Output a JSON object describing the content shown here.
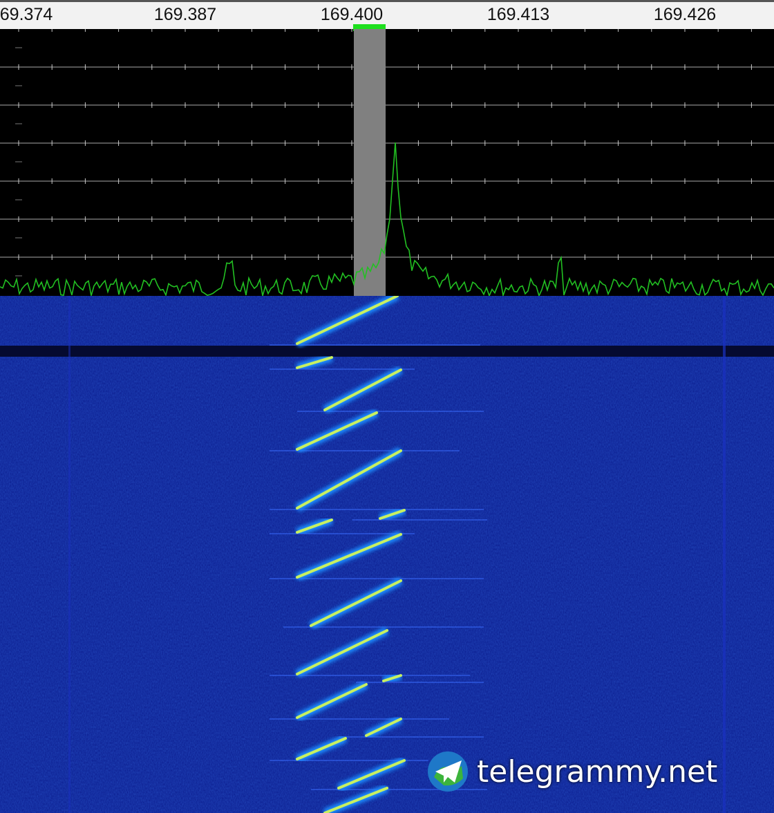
{
  "ruler": {
    "labels": [
      "69.374",
      "169.387",
      "169.400",
      "169.413",
      "169.426"
    ],
    "unit_note": ""
  },
  "spectrum": {
    "trace_color": "#22c022",
    "passband_color": "#808080",
    "marker_color": "#1ee01e",
    "peak_frequency_label": "169.400"
  },
  "waterfall": {
    "background_color": "#0a1a8c",
    "signal_color": "#c8f060"
  },
  "watermark": {
    "text": "telegrammy.net",
    "icon": "telegram-globe-icon"
  }
}
